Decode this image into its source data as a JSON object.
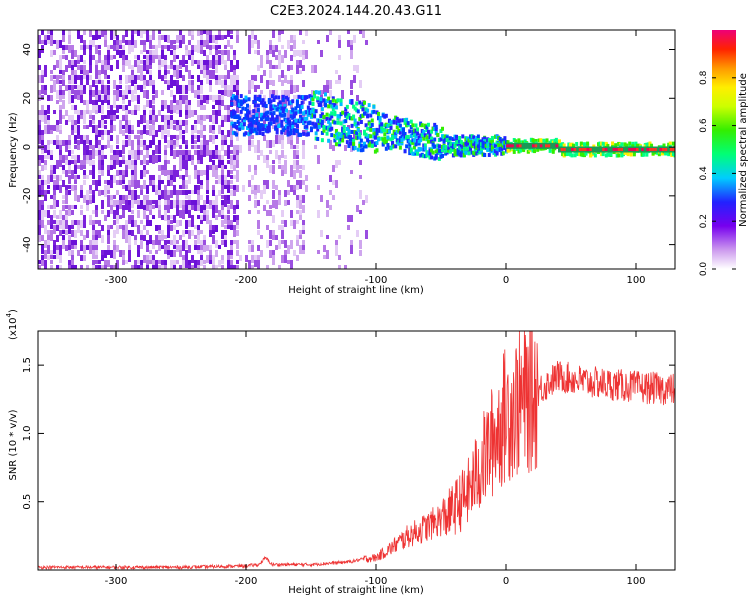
{
  "title": "C2E3.2024.144.20.43.G11",
  "colorbar": {
    "label": "Normalized spectral amplitude",
    "ticks": [
      "0.0",
      "0.2",
      "0.4",
      "0.6",
      "0.8"
    ],
    "tick_values": [
      0.0,
      0.2,
      0.4,
      0.6,
      0.8
    ],
    "range": [
      0,
      1
    ]
  },
  "chart_data": [
    {
      "type": "heatmap",
      "xlabel": "Height of straight line (km)",
      "ylabel": "Frequency (Hz)",
      "xlim": [
        -360,
        130
      ],
      "ylim": [
        -50,
        48
      ],
      "xticks": [
        -300,
        -200,
        -100,
        0,
        100
      ],
      "xtick_labels": [
        "-300",
        "-200",
        "-100",
        "0",
        "100"
      ],
      "yticks": [
        -40,
        -20,
        0,
        20,
        40
      ],
      "ytick_labels": [
        "-40",
        "-20",
        "0",
        "20",
        "40"
      ],
      "grid": false
    },
    {
      "type": "line",
      "color": "#ee3333",
      "xlabel": "Height of straight line (km)",
      "ylabel": "SNR (10 * v/v)",
      "scale_label": "(x10",
      "scale_exp": "4",
      "scale_close": ")",
      "xlim": [
        -360,
        130
      ],
      "ylim": [
        0,
        1.75
      ],
      "xticks": [
        -300,
        -200,
        -100,
        0,
        100
      ],
      "xtick_labels": [
        "-300",
        "-200",
        "-100",
        "0",
        "100"
      ],
      "yticks": [
        0.5,
        1.0,
        1.5
      ],
      "ytick_labels": [
        "0.5",
        "1.0",
        "1.5"
      ],
      "grid": false,
      "series_knots": {
        "x": [
          -360,
          -250,
          -200,
          -190,
          -185,
          -180,
          -150,
          -120,
          -110,
          -100,
          -90,
          -75,
          -60,
          -45,
          -30,
          -20,
          -10,
          -5,
          0,
          10,
          20,
          30,
          40,
          50,
          60,
          80,
          100,
          130
        ],
        "y": [
          0.02,
          0.02,
          0.03,
          0.04,
          0.09,
          0.04,
          0.04,
          0.06,
          0.08,
          0.09,
          0.15,
          0.25,
          0.32,
          0.4,
          0.55,
          0.75,
          0.95,
          1.05,
          1.15,
          1.22,
          1.28,
          1.35,
          1.42,
          1.4,
          1.38,
          1.36,
          1.34,
          1.32
        ]
      }
    }
  ]
}
